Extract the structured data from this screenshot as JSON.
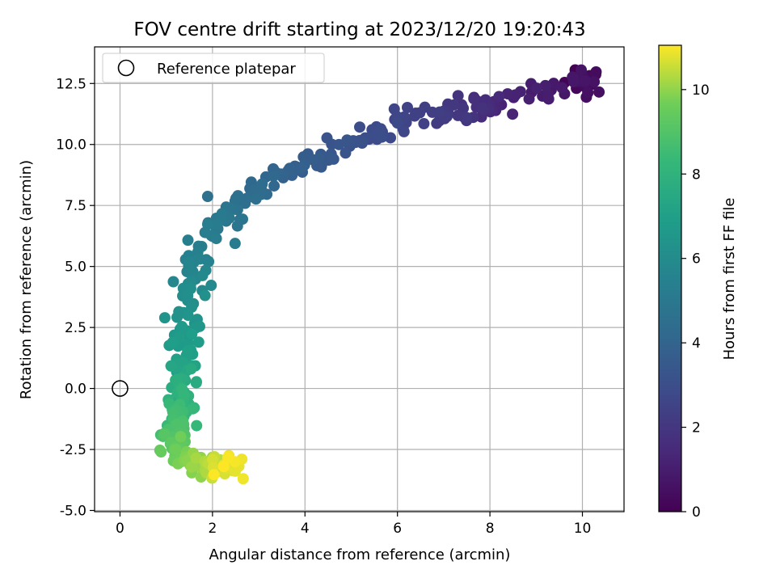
{
  "chart_data": {
    "type": "scatter",
    "title": "FOV centre drift starting at 2023/12/20 19:20:43",
    "xlabel": "Angular distance from reference (arcmin)",
    "ylabel": "Rotation from reference (arcmin)",
    "xlim": [
      -0.55,
      10.9
    ],
    "ylim": [
      -5.05,
      14.0
    ],
    "xticks": [
      "0",
      "2",
      "4",
      "6",
      "8",
      "10"
    ],
    "yticks": [
      "-5.0",
      "-2.5",
      "0.0",
      "2.5",
      "5.0",
      "7.5",
      "10.0",
      "12.5"
    ],
    "grid": true,
    "legend": {
      "position": "top-left",
      "entries": [
        "Reference platepar"
      ]
    },
    "reference_point": {
      "x": 0,
      "y": 0
    },
    "colorbar": {
      "label": "Hours from first FF file",
      "colormap": "viridis",
      "range": [
        0,
        11.05
      ],
      "ticks": [
        "0",
        "2",
        "4",
        "6",
        "8",
        "10"
      ]
    },
    "anchors": [
      {
        "t": 0.0,
        "x": 9.9,
        "y": 12.7
      },
      {
        "t": 0.6,
        "x": 10.2,
        "y": 12.6
      },
      {
        "t": 1.4,
        "x": 8.0,
        "y": 11.6
      },
      {
        "t": 2.0,
        "x": 7.3,
        "y": 11.3
      },
      {
        "t": 2.5,
        "x": 6.3,
        "y": 11.0
      },
      {
        "t": 3.1,
        "x": 5.1,
        "y": 10.2
      },
      {
        "t": 3.6,
        "x": 4.1,
        "y": 9.3
      },
      {
        "t": 4.0,
        "x": 3.5,
        "y": 8.8
      },
      {
        "t": 4.6,
        "x": 2.5,
        "y": 7.6
      },
      {
        "t": 5.2,
        "x": 2.0,
        "y": 6.4
      },
      {
        "t": 5.6,
        "x": 1.5,
        "y": 5.0
      },
      {
        "t": 6.2,
        "x": 1.5,
        "y": 3.5
      },
      {
        "t": 6.8,
        "x": 1.4,
        "y": 1.8
      },
      {
        "t": 7.4,
        "x": 1.4,
        "y": 0.5
      },
      {
        "t": 8.1,
        "x": 1.3,
        "y": -0.6
      },
      {
        "t": 8.8,
        "x": 1.2,
        "y": -1.6
      },
      {
        "t": 9.4,
        "x": 1.2,
        "y": -2.5
      },
      {
        "t": 10.0,
        "x": 1.6,
        "y": -3.2
      },
      {
        "t": 10.6,
        "x": 2.2,
        "y": -3.3
      },
      {
        "t": 11.05,
        "x": 2.5,
        "y": -3.3
      }
    ],
    "point_count": 420
  }
}
